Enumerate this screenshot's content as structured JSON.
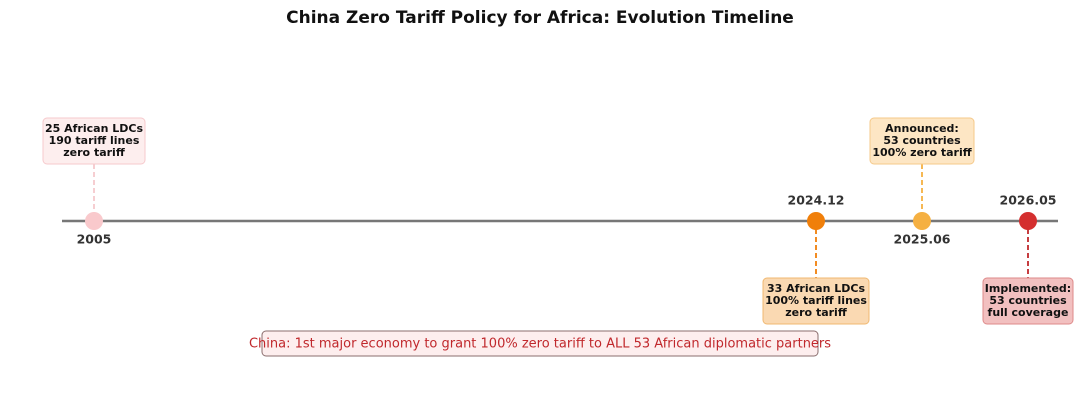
{
  "title": "China Zero Tariff Policy for Africa: Evolution Timeline",
  "events": [
    {
      "date": "2005",
      "lines": [
        "25 African LDCs",
        "190 tariff lines",
        "zero tariff"
      ]
    },
    {
      "date": "2024.12",
      "lines": [
        "33 African LDCs",
        "100% tariff lines",
        "zero tariff"
      ]
    },
    {
      "date": "2025.06",
      "lines": [
        "Announced:",
        "53 countries",
        "100% zero tariff"
      ]
    },
    {
      "date": "2026.05",
      "lines": [
        "Implemented:",
        "53 countries",
        "full coverage"
      ]
    }
  ],
  "note": "China: 1st major economy to grant 100% zero tariff to ALL 53 African diplomatic partners"
}
